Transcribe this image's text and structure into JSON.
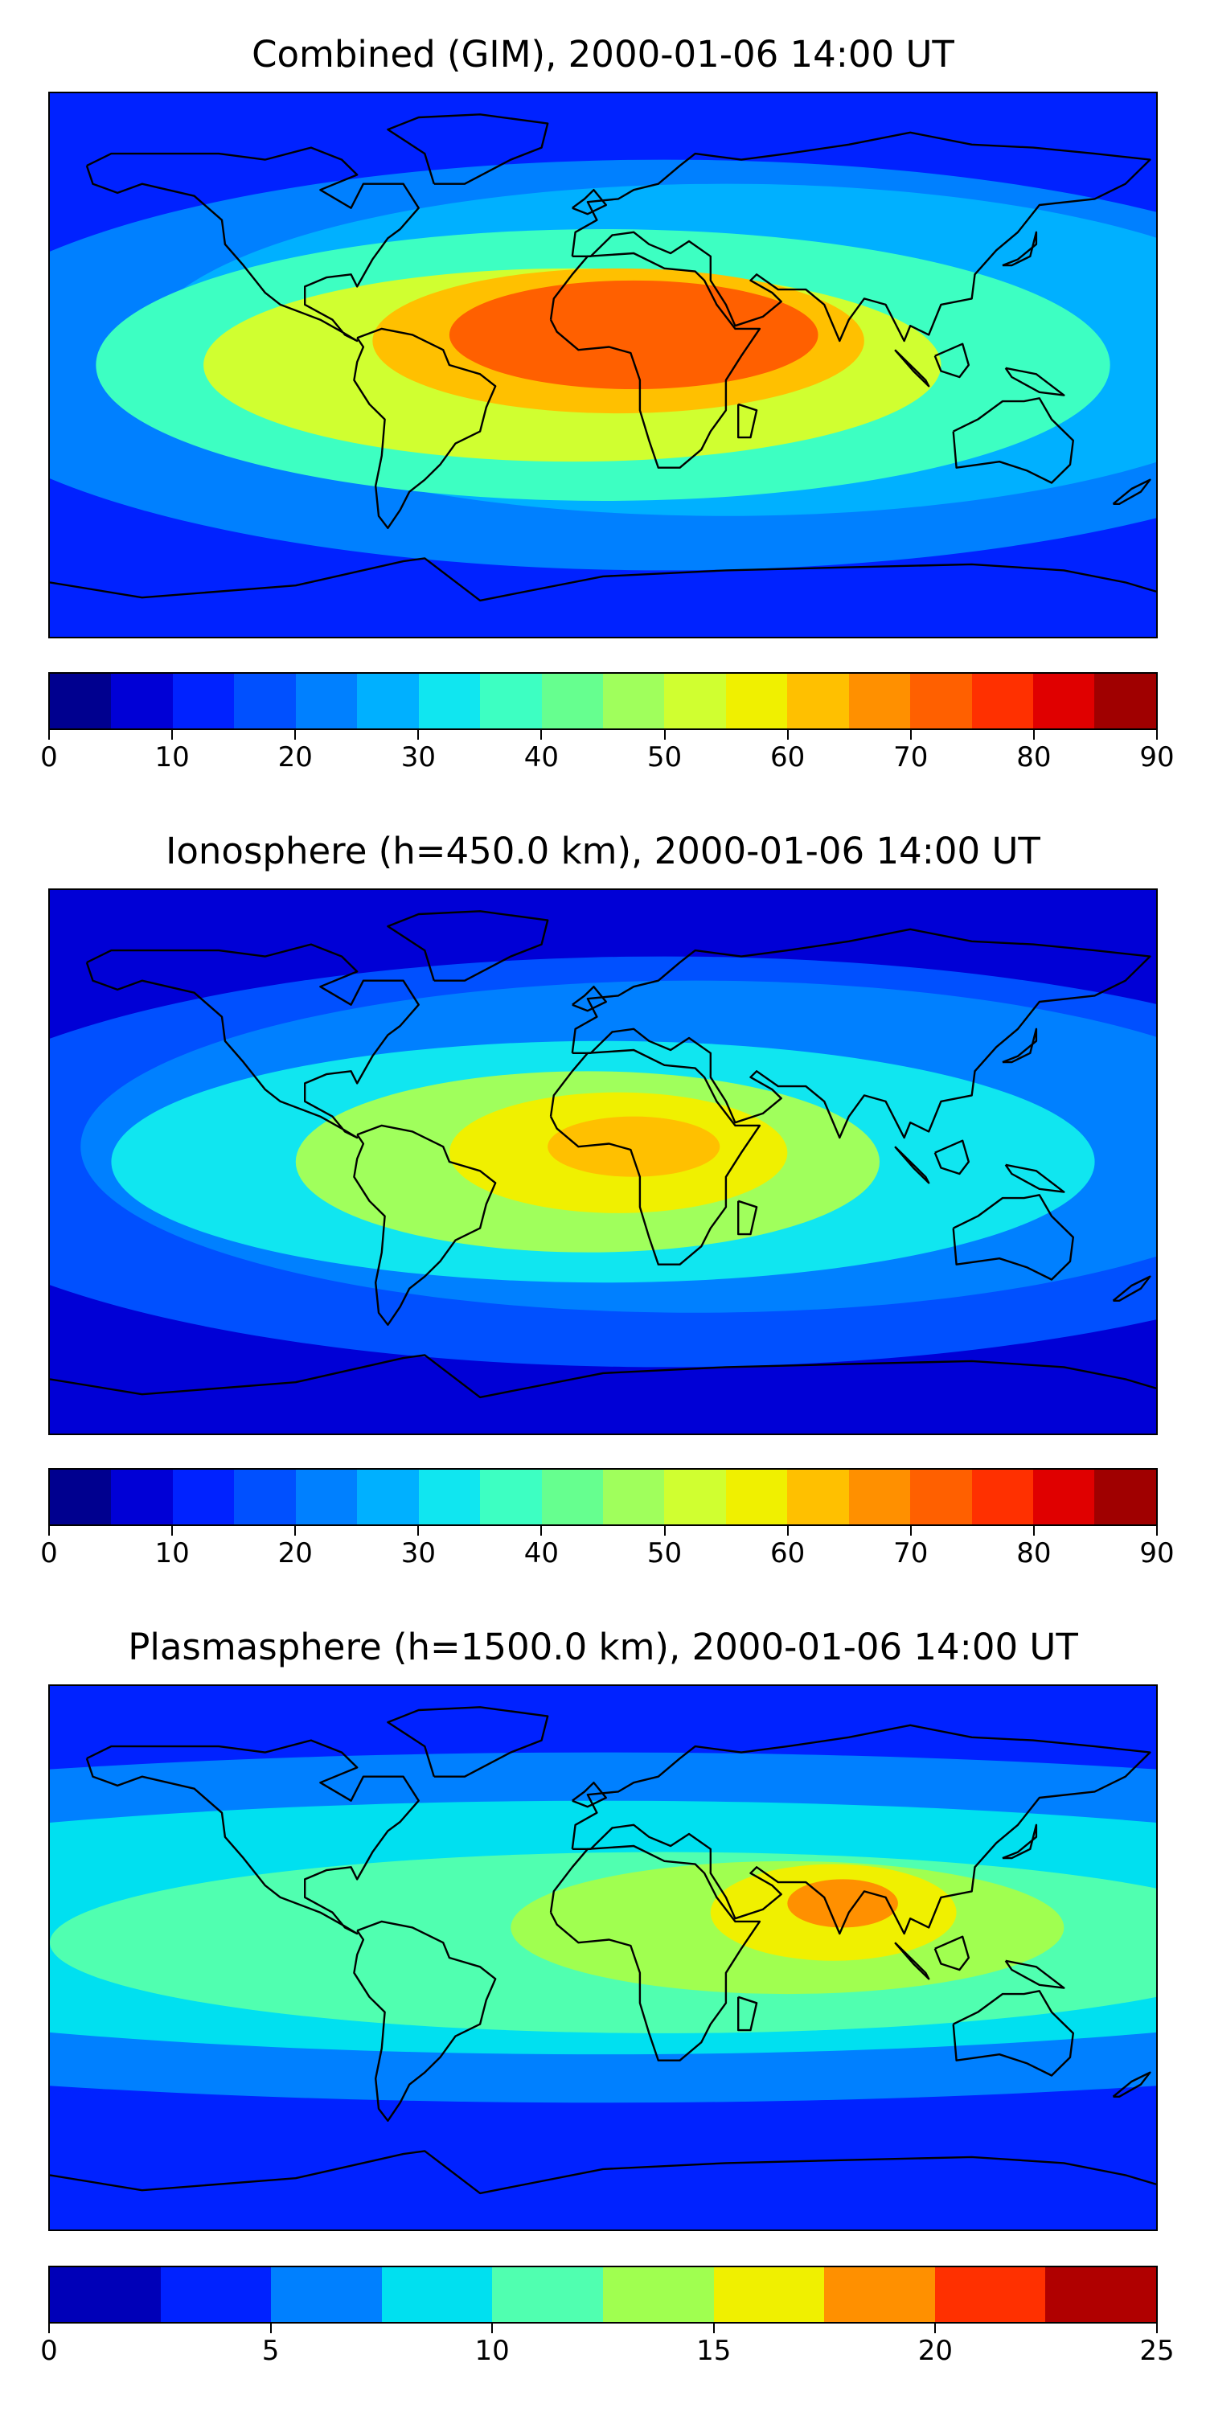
{
  "chart_data": [
    {
      "type": "heatmap",
      "title": "Combined (GIM), 2000-01-06 14:00 UT",
      "colorbar": {
        "ticks": [
          "0",
          "10",
          "20",
          "30",
          "40",
          "50",
          "60",
          "70",
          "80",
          "90"
        ],
        "levels": [
          0,
          5,
          10,
          15,
          20,
          25,
          30,
          35,
          40,
          45,
          50,
          55,
          60,
          65,
          70,
          75,
          80,
          85,
          90
        ],
        "colors": [
          "#00008f",
          "#0000d6",
          "#0022ff",
          "#0050ff",
          "#0080ff",
          "#00b0ff",
          "#10e6f0",
          "#3dffc2",
          "#66ff8f",
          "#a0ff5c",
          "#d0ff30",
          "#f0f000",
          "#ffc000",
          "#ff9000",
          "#ff6000",
          "#ff3000",
          "#e00000",
          "#a00000"
        ]
      },
      "field": {
        "background": 2,
        "blobs": [
          {
            "lon": 10,
            "lat": 10,
            "level": 14,
            "rx": 60,
            "ry": 18
          },
          {
            "lon": 5,
            "lat": 8,
            "level": 12,
            "rx": 80,
            "ry": 24
          },
          {
            "lon": -10,
            "lat": 0,
            "level": 10,
            "rx": 120,
            "ry": 32
          },
          {
            "lon": 0,
            "lat": 0,
            "level": 7,
            "rx": 165,
            "ry": 45
          },
          {
            "lon": 40,
            "lat": 5,
            "level": 5,
            "rx": 190,
            "ry": 55
          },
          {
            "lon": 20,
            "lat": 0,
            "level": 4,
            "rx": 240,
            "ry": 68
          }
        ]
      }
    },
    {
      "type": "heatmap",
      "title": "Ionosphere  (h=450.0 km), 2000-01-06 14:00 UT",
      "colorbar": {
        "ticks": [
          "0",
          "10",
          "20",
          "30",
          "40",
          "50",
          "60",
          "70",
          "80",
          "90"
        ],
        "levels": [
          0,
          5,
          10,
          15,
          20,
          25,
          30,
          35,
          40,
          45,
          50,
          55,
          60,
          65,
          70,
          75,
          80,
          85,
          90
        ],
        "colors": [
          "#00008f",
          "#0000d6",
          "#0022ff",
          "#0050ff",
          "#0080ff",
          "#00b0ff",
          "#10e6f0",
          "#3dffc2",
          "#66ff8f",
          "#a0ff5c",
          "#d0ff30",
          "#f0f000",
          "#ffc000",
          "#ff9000",
          "#ff6000",
          "#ff3000",
          "#e00000",
          "#a00000"
        ]
      },
      "field": {
        "background": 1,
        "blobs": [
          {
            "lon": 10,
            "lat": 5,
            "level": 12,
            "rx": 28,
            "ry": 10
          },
          {
            "lon": 5,
            "lat": 3,
            "level": 11,
            "rx": 55,
            "ry": 20
          },
          {
            "lon": -5,
            "lat": 0,
            "level": 9,
            "rx": 95,
            "ry": 30
          },
          {
            "lon": 0,
            "lat": 0,
            "level": 6,
            "rx": 160,
            "ry": 40
          },
          {
            "lon": 30,
            "lat": 5,
            "level": 4,
            "rx": 200,
            "ry": 55
          },
          {
            "lon": 20,
            "lat": 0,
            "level": 3,
            "rx": 250,
            "ry": 68
          }
        ]
      }
    },
    {
      "type": "heatmap",
      "title": "Plasmasphere (h=1500.0 km), 2000-01-06 14:00 UT",
      "colorbar": {
        "ticks": [
          "0",
          "5",
          "10",
          "15",
          "20",
          "25"
        ],
        "levels": [
          0,
          2.5,
          5,
          7.5,
          10,
          12.5,
          15,
          17.5,
          20,
          22.5,
          25
        ],
        "colors": [
          "#0000b8",
          "#0022ff",
          "#0080ff",
          "#00e0f0",
          "#50ffb0",
          "#a0ff50",
          "#f0f000",
          "#ff9000",
          "#ff3000",
          "#b00000"
        ]
      },
      "field": {
        "background": 1,
        "blobs": [
          {
            "lon": 78,
            "lat": 18,
            "level": 7,
            "rx": 18,
            "ry": 8
          },
          {
            "lon": 75,
            "lat": 15,
            "level": 6,
            "rx": 40,
            "ry": 16
          },
          {
            "lon": 60,
            "lat": 10,
            "level": 5,
            "rx": 90,
            "ry": 22
          },
          {
            "lon": 20,
            "lat": 5,
            "level": 4,
            "rx": 200,
            "ry": 30
          },
          {
            "lon": 0,
            "lat": 10,
            "level": 3,
            "rx": 320,
            "ry": 42
          },
          {
            "lon": 0,
            "lat": 10,
            "level": 2,
            "rx": 420,
            "ry": 58
          }
        ]
      }
    }
  ]
}
